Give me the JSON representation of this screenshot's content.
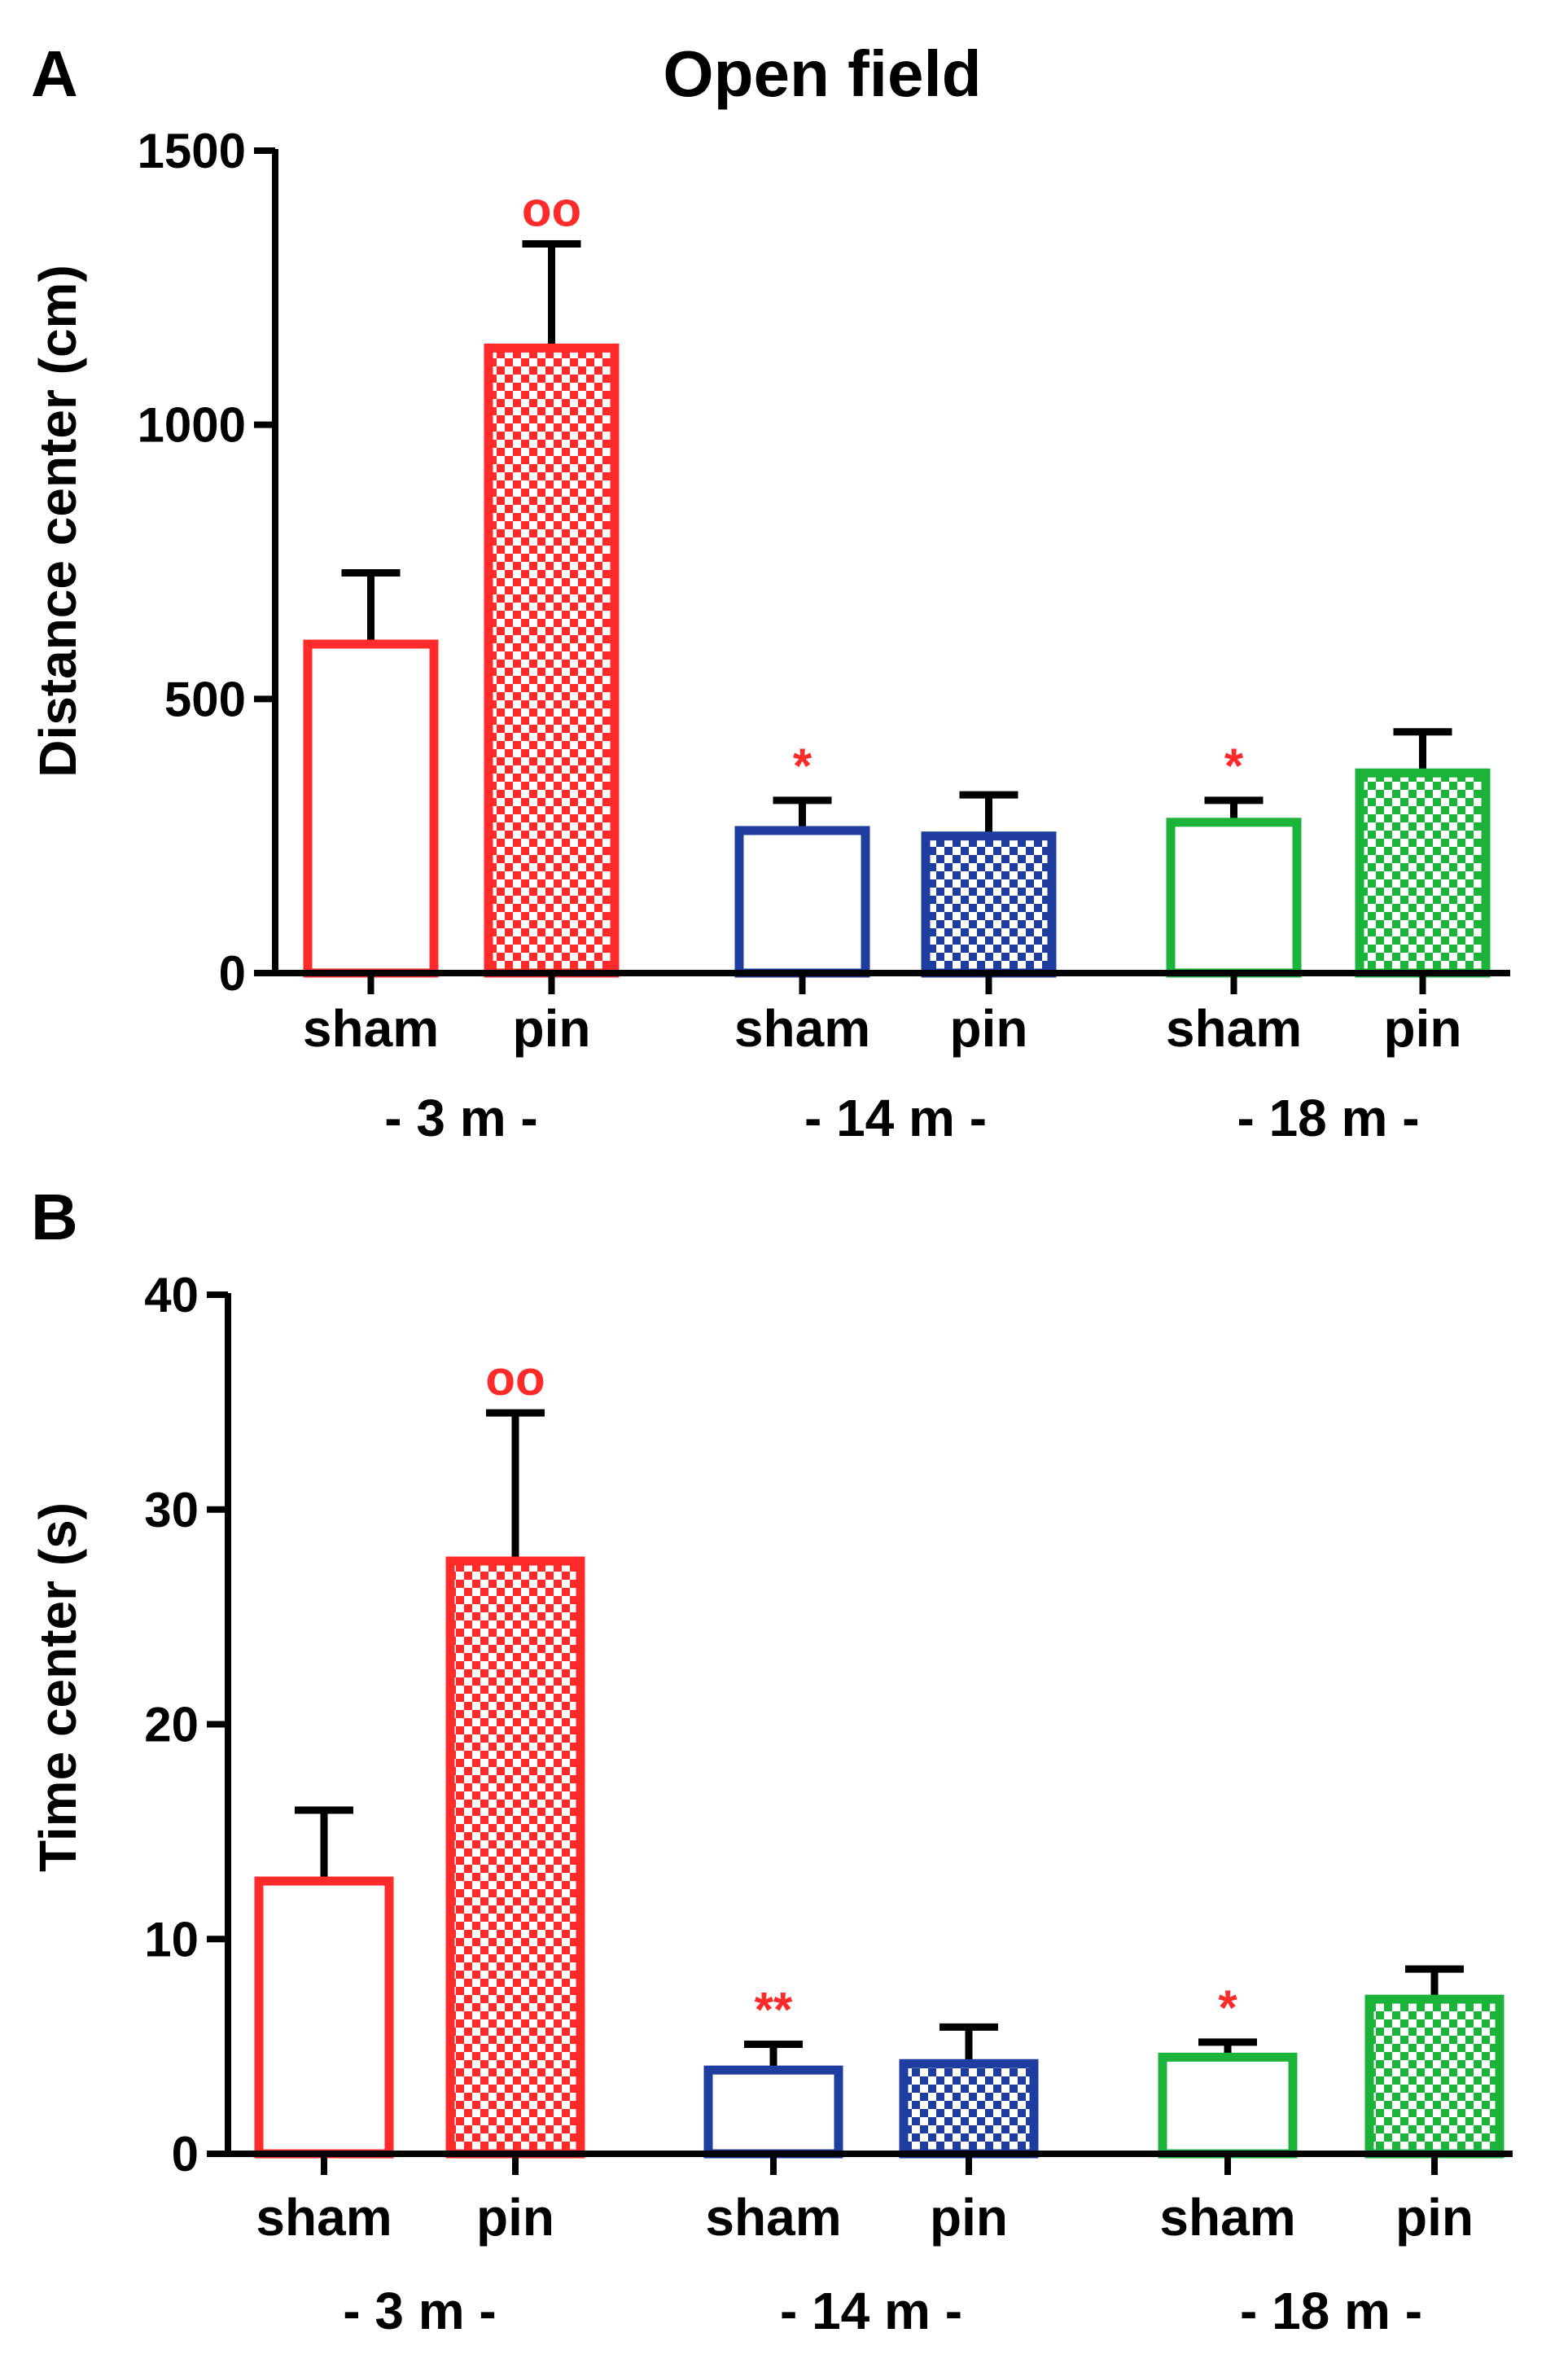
{
  "colors": {
    "red": "#ff2a2a",
    "blue": "#1f3d9e",
    "green": "#1cb33a",
    "black": "#000000"
  },
  "chart_data": [
    {
      "panel": "A",
      "type": "bar",
      "title": "Open field",
      "ylabel": "Distance center (cm)",
      "xlabel": "",
      "ylim": [
        0,
        1500
      ],
      "yticks": [
        0,
        500,
        1000,
        1500
      ],
      "categories": [
        "sham",
        "pin",
        "sham",
        "pin",
        "sham",
        "pin"
      ],
      "groups": [
        {
          "label": "- 3 m -",
          "members": [
            0,
            1
          ]
        },
        {
          "label": "- 14 m -",
          "members": [
            2,
            3
          ]
        },
        {
          "label": "- 18 m -",
          "members": [
            4,
            5
          ]
        }
      ],
      "values": [
        600,
        1140,
        260,
        250,
        275,
        365
      ],
      "errors": [
        130,
        190,
        55,
        75,
        40,
        75
      ],
      "fill": [
        "open",
        "checker",
        "open",
        "checker",
        "open",
        "checker"
      ],
      "series_colors": [
        "red",
        "red",
        "blue",
        "blue",
        "green",
        "green"
      ],
      "annotations": [
        "",
        "oo",
        "*",
        "",
        "*",
        ""
      ]
    },
    {
      "panel": "B",
      "type": "bar",
      "title": "",
      "ylabel": "Time center (s)",
      "xlabel": "",
      "ylim": [
        0,
        40
      ],
      "yticks": [
        0,
        10,
        20,
        30,
        40
      ],
      "categories": [
        "sham",
        "pin",
        "sham",
        "pin",
        "sham",
        "pin"
      ],
      "groups": [
        {
          "label": "- 3 m -",
          "members": [
            0,
            1
          ]
        },
        {
          "label": "- 14 m -",
          "members": [
            2,
            3
          ]
        },
        {
          "label": "- 18 m -",
          "members": [
            4,
            5
          ]
        }
      ],
      "values": [
        12.7,
        27.6,
        3.9,
        4.2,
        4.5,
        7.2
      ],
      "errors": [
        3.3,
        6.9,
        1.2,
        1.7,
        0.7,
        1.4
      ],
      "fill": [
        "open",
        "checker",
        "open",
        "checker",
        "open",
        "checker"
      ],
      "series_colors": [
        "red",
        "red",
        "blue",
        "blue",
        "green",
        "green"
      ],
      "annotations": [
        "",
        "oo",
        "**",
        "",
        "*",
        ""
      ]
    }
  ]
}
